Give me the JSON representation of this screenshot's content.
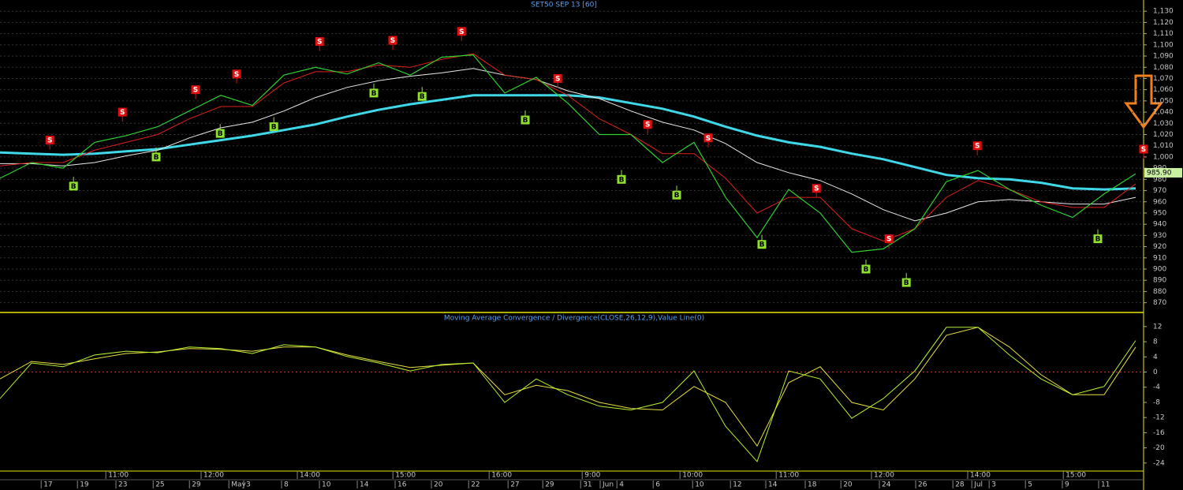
{
  "chart_data": [
    {
      "type": "line",
      "title": "SET50 SEP 13  [60]",
      "x": [
        0,
        1,
        2,
        3,
        4,
        5,
        6,
        7,
        8,
        9,
        10,
        11,
        12,
        13,
        14,
        15,
        16,
        17,
        18,
        19,
        20,
        21,
        22,
        23,
        24,
        25,
        26,
        27,
        28,
        29,
        30,
        31,
        32,
        33,
        34,
        35,
        36
      ],
      "xlim": [
        0,
        36.25
      ],
      "ylim": [
        862,
        1140
      ],
      "yticks": [
        870,
        880,
        890,
        900,
        910,
        920,
        930,
        940,
        950,
        960,
        970,
        980,
        990,
        {
          "value": 1000,
          "label": "1,000"
        },
        {
          "value": 1010,
          "label": "1,010"
        },
        {
          "value": 1020,
          "label": "1,020"
        },
        {
          "value": 1030,
          "label": "1,030"
        },
        {
          "value": 1040,
          "label": "1,040"
        },
        {
          "value": 1050,
          "label": "1,050"
        },
        {
          "value": 1060,
          "label": "1,060"
        },
        {
          "value": 1070,
          "label": "1,070"
        },
        {
          "value": 1080,
          "label": "1,080"
        },
        {
          "value": 1090,
          "label": "1,090"
        },
        {
          "value": 1100,
          "label": "1,100"
        },
        {
          "value": 1110,
          "label": "1,110"
        },
        {
          "value": 1120,
          "label": "1,120"
        },
        {
          "value": 1130,
          "label": "1,130"
        }
      ],
      "grid": true,
      "series": [
        {
          "color": "#3fd8e8",
          "width": 3,
          "values": [
            1004,
            1003,
            1002,
            1003,
            1005,
            1007,
            1011,
            1015,
            1019,
            1024,
            1029,
            1036,
            1042,
            1047,
            1051,
            1055,
            1055,
            1055,
            1055,
            1053,
            1048,
            1043,
            1036,
            1027,
            1019,
            1013,
            1009,
            1003,
            998,
            991,
            984,
            981,
            980,
            977,
            972,
            971,
            972
          ]
        },
        {
          "color": "#e8e8e8",
          "width": 1,
          "values": [
            994,
            994,
            992,
            995,
            1001,
            1006,
            1017,
            1026,
            1031,
            1041,
            1053,
            1062,
            1068,
            1072,
            1075,
            1079,
            1073,
            1069,
            1059,
            1052,
            1041,
            1031,
            1024,
            1012,
            995,
            986,
            979,
            967,
            953,
            943,
            950,
            960,
            962,
            960,
            958,
            958,
            964
          ]
        },
        {
          "color": "#e0201a",
          "width": 1,
          "values": [
            992,
            995,
            995,
            1006,
            1013,
            1020,
            1034,
            1045,
            1045,
            1066,
            1076,
            1076,
            1082,
            1080,
            1087,
            1092,
            1073,
            1069,
            1055,
            1034,
            1020,
            1003,
            1003,
            981,
            950,
            964,
            964,
            936,
            925,
            936,
            964,
            979,
            971,
            960,
            955,
            955,
            976
          ]
        },
        {
          "color": "#2fd030",
          "width": 1.2,
          "values": [
            981,
            995,
            990,
            1013,
            1019,
            1027,
            1041,
            1055,
            1046,
            1073,
            1080,
            1074,
            1084,
            1073,
            1089,
            1091,
            1057,
            1071,
            1048,
            1020,
            1020,
            995,
            1013,
            964,
            928,
            971,
            950,
            915,
            918,
            936,
            978,
            988,
            971,
            957,
            946,
            967,
            985
          ]
        }
      ],
      "signals": [
        {
          "x": 1.58,
          "y": 1015,
          "label": "S"
        },
        {
          "x": 3.88,
          "y": 1040,
          "label": "S"
        },
        {
          "x": 6.2,
          "y": 1060,
          "label": "S"
        },
        {
          "x": 7.5,
          "y": 1074,
          "label": "S"
        },
        {
          "x": 10.13,
          "y": 1103,
          "label": "S"
        },
        {
          "x": 12.45,
          "y": 1104,
          "label": "S"
        },
        {
          "x": 14.63,
          "y": 1112,
          "label": "S"
        },
        {
          "x": 17.68,
          "y": 1070,
          "label": "S"
        },
        {
          "x": 20.53,
          "y": 1029,
          "label": "S"
        },
        {
          "x": 22.45,
          "y": 1017,
          "label": "S"
        },
        {
          "x": 25.88,
          "y": 972,
          "label": "S"
        },
        {
          "x": 28.18,
          "y": 927,
          "label": "S"
        },
        {
          "x": 30.98,
          "y": 1010,
          "label": "S"
        },
        {
          "x": 36.25,
          "y": 1007,
          "label": "S"
        },
        {
          "x": 2.33,
          "y": 974,
          "label": "B"
        },
        {
          "x": 4.95,
          "y": 1000,
          "label": "B"
        },
        {
          "x": 6.98,
          "y": 1021,
          "label": "B"
        },
        {
          "x": 8.68,
          "y": 1027,
          "label": "B"
        },
        {
          "x": 11.85,
          "y": 1057,
          "label": "B"
        },
        {
          "x": 13.38,
          "y": 1054,
          "label": "B"
        },
        {
          "x": 16.65,
          "y": 1033,
          "label": "B"
        },
        {
          "x": 19.7,
          "y": 980,
          "label": "B"
        },
        {
          "x": 21.45,
          "y": 966,
          "label": "B"
        },
        {
          "x": 24.15,
          "y": 922,
          "label": "B"
        },
        {
          "x": 27.45,
          "y": 900,
          "label": "B"
        },
        {
          "x": 28.73,
          "y": 888,
          "label": "B"
        },
        {
          "x": 34.8,
          "y": 927,
          "label": "B"
        }
      ],
      "last_price": {
        "value": 985.9,
        "label": "985.90"
      }
    },
    {
      "type": "line",
      "title": "Moving Average Convergence / Divergence(CLOSE,26,12,9),Value Line(0)",
      "x": [
        0,
        1,
        2,
        3,
        4,
        5,
        6,
        7,
        8,
        9,
        10,
        11,
        12,
        13,
        14,
        15,
        16,
        17,
        18,
        19,
        20,
        21,
        22,
        23,
        24,
        25,
        26,
        27,
        28,
        29,
        30,
        31,
        32,
        33,
        34,
        35,
        36
      ],
      "xlim": [
        0,
        36.25
      ],
      "ylim": [
        -25.7,
        15.3
      ],
      "yticks": [
        12,
        8,
        4,
        0,
        -4,
        -8,
        -12,
        -16,
        -20,
        -24
      ],
      "series": [
        {
          "color": "#e8e040",
          "values": [
            -1.8,
            2.8,
            2,
            3.5,
            4.9,
            5.3,
            6.2,
            6,
            5.5,
            6.6,
            6.6,
            4.5,
            2.8,
            1.2,
            1.8,
            2.4,
            -6,
            -3.5,
            -4.9,
            -8,
            -9.6,
            -10,
            -3.8,
            -8,
            -19.5,
            -2.8,
            1.4,
            -8,
            -10,
            -1.8,
            9.7,
            11.8,
            6.6,
            -0.7,
            -6,
            -6,
            6.6
          ]
        },
        {
          "color": "#b8f030",
          "values": [
            -7,
            2.4,
            1.4,
            4.5,
            5.5,
            5.1,
            6.6,
            6.2,
            4.9,
            7.2,
            6.6,
            4.1,
            2.4,
            0.3,
            2,
            2.4,
            -8,
            -1.8,
            -6,
            -9,
            -10,
            -8,
            0.3,
            -14.3,
            -23.6,
            0.3,
            -1.8,
            -12.2,
            -7,
            0.3,
            11.8,
            11.8,
            4.5,
            -1.8,
            -6,
            -3.8,
            8.3
          ]
        }
      ],
      "xticks": [
        {
          "value": 1.38,
          "label": "17"
        },
        {
          "value": 2.53,
          "label": "19"
        },
        {
          "value": 3.75,
          "label": "23"
        },
        {
          "value": 4.93,
          "label": "25"
        },
        {
          "value": 6.08,
          "label": "29"
        },
        {
          "value": 7.33,
          "label": "May"
        },
        {
          "value": 7.8,
          "label": "3"
        },
        {
          "value": 9,
          "label": "8"
        },
        {
          "value": 10.2,
          "label": "10"
        },
        {
          "value": 11.4,
          "label": "14"
        },
        {
          "value": 12.6,
          "label": "16"
        },
        {
          "value": 13.75,
          "label": "20"
        },
        {
          "value": 14.93,
          "label": "22"
        },
        {
          "value": 16.18,
          "label": "27"
        },
        {
          "value": 17.28,
          "label": "29"
        },
        {
          "value": 18.48,
          "label": "31"
        },
        {
          "value": 19.1,
          "label": "Jun"
        },
        {
          "value": 19.63,
          "label": "4"
        },
        {
          "value": 20.78,
          "label": "6"
        },
        {
          "value": 22.03,
          "label": "10"
        },
        {
          "value": 23.23,
          "label": "12"
        },
        {
          "value": 24.35,
          "label": "14"
        },
        {
          "value": 25.6,
          "label": "18"
        },
        {
          "value": 26.73,
          "label": "20"
        },
        {
          "value": 27.95,
          "label": "24"
        },
        {
          "value": 29.1,
          "label": "26"
        },
        {
          "value": 30.28,
          "label": "28"
        },
        {
          "value": 30.88,
          "label": "Jul"
        },
        {
          "value": 31.43,
          "label": "3"
        },
        {
          "value": 32.58,
          "label": "5"
        },
        {
          "value": 33.75,
          "label": "9"
        },
        {
          "value": 34.9,
          "label": "11"
        }
      ],
      "time_ticks": [
        {
          "value": 3.43,
          "label": "11:00"
        },
        {
          "value": 6.45,
          "label": "12:00"
        },
        {
          "value": 9.5,
          "label": "14:00"
        },
        {
          "value": 12.53,
          "label": "15:00"
        },
        {
          "value": 15.58,
          "label": "16:00"
        },
        {
          "value": 18.53,
          "label": "9:00"
        },
        {
          "value": 21.63,
          "label": "10:00"
        },
        {
          "value": 24.68,
          "label": "11:00"
        },
        {
          "value": 27.7,
          "label": "12:00"
        },
        {
          "value": 30.75,
          "label": "14:00"
        },
        {
          "value": 33.78,
          "label": "15:00"
        }
      ]
    }
  ]
}
